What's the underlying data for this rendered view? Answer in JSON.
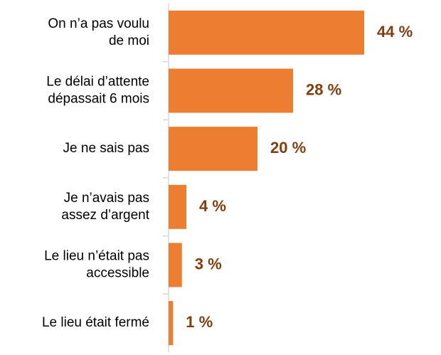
{
  "chart_data": {
    "type": "bar",
    "orientation": "horizontal",
    "categories": [
      "On n’a pas voulu\nde moi",
      "Le délai d’attente\ndépassait 6 mois",
      "Je ne sais pas",
      "Je n’avais pas\nassez d’argent",
      "Le lieu n’était pas\naccessible",
      "Le lieu était fermé"
    ],
    "values": [
      44,
      28,
      20,
      4,
      3,
      1
    ],
    "value_labels": [
      "44 %",
      "28 %",
      "20 %",
      "4 %",
      "3 %",
      "1 %"
    ],
    "color": "#ED7D31",
    "label_color": "#843C0C"
  }
}
